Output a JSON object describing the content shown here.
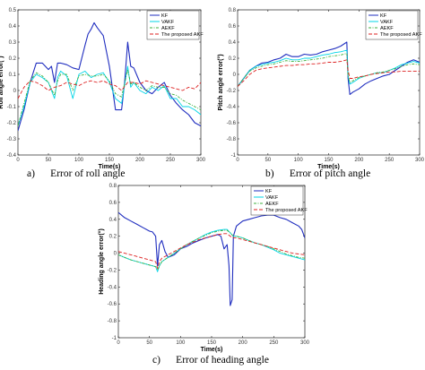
{
  "chart_data": [
    {
      "type": "line",
      "caption": "a)      Error of roll angle",
      "xlabel": "Time(s)",
      "ylabel": "Roll angle error(°)",
      "xlim": [
        0,
        300
      ],
      "ylim": [
        -0.4,
        0.5
      ],
      "xticks": [
        0,
        50,
        100,
        150,
        200,
        250,
        300
      ],
      "yticks": [
        -0.4,
        -0.3,
        -0.2,
        -0.1,
        0,
        0.1,
        0.2,
        0.3,
        0.4,
        0.5
      ],
      "legend_position": "top-right",
      "grid": false,
      "series": [
        {
          "name": "KF",
          "color": "#1f2dbf",
          "style": "solid",
          "x": [
            0,
            10,
            20,
            30,
            40,
            50,
            55,
            60,
            65,
            70,
            80,
            90,
            100,
            110,
            115,
            120,
            125,
            130,
            140,
            150,
            160,
            170,
            175,
            180,
            185,
            190,
            200,
            210,
            220,
            230,
            240,
            250,
            260,
            270,
            280,
            290,
            300
          ],
          "y": [
            -0.25,
            -0.12,
            0.05,
            0.17,
            0.17,
            0.13,
            0.15,
            0.05,
            0.17,
            0.17,
            0.16,
            0.14,
            0.13,
            0.28,
            0.35,
            0.38,
            0.42,
            0.39,
            0.34,
            0.15,
            -0.12,
            -0.12,
            0.05,
            0.3,
            0.15,
            0.14,
            0.05,
            0.0,
            -0.02,
            0.02,
            0.05,
            -0.03,
            -0.08,
            -0.12,
            -0.15,
            -0.2,
            -0.22
          ]
        },
        {
          "name": "VAKF",
          "color": "#00d4e6",
          "style": "solid",
          "x": [
            0,
            10,
            20,
            30,
            40,
            50,
            55,
            60,
            65,
            70,
            80,
            90,
            100,
            110,
            120,
            130,
            140,
            150,
            160,
            170,
            180,
            185,
            190,
            200,
            210,
            220,
            230,
            240,
            250,
            260,
            270,
            280,
            290,
            300
          ],
          "y": [
            -0.22,
            -0.1,
            0.05,
            0.1,
            0.08,
            0.05,
            0.0,
            -0.05,
            0.08,
            0.12,
            0.09,
            -0.05,
            0.1,
            0.12,
            0.08,
            0.1,
            0.11,
            0.05,
            -0.05,
            -0.08,
            0.15,
            0.02,
            0.05,
            0.0,
            -0.02,
            0.02,
            0.0,
            0.03,
            -0.05,
            -0.05,
            -0.1,
            -0.1,
            -0.12,
            -0.15
          ]
        },
        {
          "name": "AEKF",
          "color": "#3cb13c",
          "style": "dashdot",
          "x": [
            0,
            10,
            20,
            30,
            40,
            50,
            60,
            65,
            70,
            80,
            90,
            100,
            110,
            120,
            130,
            140,
            150,
            160,
            170,
            180,
            185,
            190,
            200,
            210,
            220,
            230,
            240,
            250,
            260,
            270,
            280,
            290,
            300
          ],
          "y": [
            -0.22,
            -0.08,
            0.06,
            0.11,
            0.09,
            0.05,
            -0.03,
            0.06,
            0.1,
            0.1,
            0.0,
            0.09,
            0.1,
            0.09,
            0.09,
            0.1,
            0.06,
            -0.02,
            -0.04,
            0.13,
            0.04,
            0.05,
            0.02,
            0.0,
            0.03,
            0.02,
            0.02,
            -0.02,
            -0.03,
            -0.06,
            -0.08,
            -0.1,
            -0.12
          ]
        },
        {
          "name": "The proposed AKF",
          "color": "#dd2020",
          "style": "dashed",
          "x": [
            0,
            10,
            20,
            30,
            40,
            50,
            60,
            70,
            80,
            90,
            100,
            110,
            120,
            130,
            140,
            150,
            160,
            170,
            180,
            190,
            200,
            210,
            220,
            230,
            240,
            250,
            260,
            270,
            280,
            290,
            300
          ],
          "y": [
            -0.05,
            0.02,
            0.06,
            0.05,
            0.03,
            0.0,
            0.02,
            0.03,
            0.05,
            0.04,
            0.03,
            0.05,
            0.06,
            0.05,
            0.06,
            0.04,
            0.03,
            0.0,
            0.05,
            0.05,
            0.04,
            0.06,
            0.05,
            0.04,
            0.03,
            0.02,
            0.01,
            0.0,
            0.02,
            0.01,
            0.05
          ]
        }
      ]
    },
    {
      "type": "line",
      "caption": "b)      Error of pitch angle",
      "xlabel": "Time(s)",
      "ylabel": "Pitch angle error(°)",
      "xlim": [
        0,
        300
      ],
      "ylim": [
        -1,
        0.8
      ],
      "xticks": [
        0,
        50,
        100,
        150,
        200,
        250,
        300
      ],
      "yticks": [
        -1,
        -0.8,
        -0.6,
        -0.4,
        -0.2,
        0,
        0.2,
        0.4,
        0.6,
        0.8
      ],
      "legend_position": "top-right",
      "grid": false,
      "series": [
        {
          "name": "KF",
          "color": "#1f2dbf",
          "style": "solid",
          "x": [
            0,
            10,
            20,
            30,
            40,
            50,
            60,
            70,
            80,
            90,
            100,
            110,
            120,
            130,
            140,
            150,
            160,
            170,
            180,
            182,
            185,
            190,
            200,
            210,
            220,
            230,
            240,
            250,
            260,
            270,
            280,
            290,
            300
          ],
          "y": [
            -0.15,
            -0.05,
            0.05,
            0.1,
            0.14,
            0.15,
            0.18,
            0.2,
            0.25,
            0.22,
            0.22,
            0.25,
            0.24,
            0.25,
            0.28,
            0.3,
            0.32,
            0.35,
            0.4,
            -0.05,
            -0.25,
            -0.22,
            -0.18,
            -0.12,
            -0.08,
            -0.05,
            -0.02,
            0.0,
            0.05,
            0.1,
            0.15,
            0.18,
            0.15
          ]
        },
        {
          "name": "VAKF",
          "color": "#00d4e6",
          "style": "solid",
          "x": [
            0,
            10,
            20,
            30,
            40,
            50,
            60,
            70,
            80,
            90,
            100,
            110,
            120,
            130,
            140,
            150,
            160,
            170,
            180,
            182,
            185,
            190,
            200,
            210,
            220,
            230,
            240,
            250,
            260,
            270,
            280,
            290,
            300
          ],
          "y": [
            -0.15,
            -0.05,
            0.05,
            0.1,
            0.12,
            0.14,
            0.15,
            0.17,
            0.2,
            0.18,
            0.18,
            0.2,
            0.2,
            0.22,
            0.24,
            0.25,
            0.27,
            0.28,
            0.3,
            -0.02,
            -0.12,
            -0.1,
            -0.05,
            -0.02,
            0.0,
            0.02,
            0.02,
            0.05,
            0.08,
            0.12,
            0.14,
            0.16,
            0.14
          ]
        },
        {
          "name": "AEKF",
          "color": "#3cb13c",
          "style": "dashdot",
          "x": [
            0,
            10,
            20,
            30,
            40,
            50,
            60,
            70,
            80,
            90,
            100,
            110,
            120,
            130,
            140,
            150,
            160,
            170,
            180,
            182,
            185,
            190,
            200,
            210,
            220,
            230,
            240,
            250,
            260,
            270,
            280,
            290,
            300
          ],
          "y": [
            -0.15,
            -0.05,
            0.04,
            0.08,
            0.1,
            0.12,
            0.13,
            0.15,
            0.17,
            0.16,
            0.16,
            0.17,
            0.18,
            0.19,
            0.2,
            0.22,
            0.23,
            0.24,
            0.26,
            -0.02,
            -0.1,
            -0.08,
            -0.04,
            -0.02,
            0.0,
            0.02,
            0.03,
            0.05,
            0.07,
            0.1,
            0.12,
            0.13,
            0.12
          ]
        },
        {
          "name": "The proposed AKF",
          "color": "#dd2020",
          "style": "dashed",
          "x": [
            0,
            10,
            20,
            30,
            40,
            50,
            60,
            70,
            80,
            90,
            100,
            110,
            120,
            130,
            140,
            150,
            160,
            170,
            180,
            182,
            185,
            190,
            200,
            210,
            220,
            230,
            240,
            250,
            260,
            270,
            280,
            290,
            300
          ],
          "y": [
            -0.15,
            -0.08,
            0.0,
            0.05,
            0.07,
            0.08,
            0.09,
            0.1,
            0.11,
            0.11,
            0.12,
            0.12,
            0.13,
            0.13,
            0.14,
            0.15,
            0.15,
            0.16,
            0.18,
            0.05,
            -0.05,
            -0.05,
            -0.03,
            -0.02,
            0.0,
            0.01,
            0.02,
            0.03,
            0.03,
            0.04,
            0.04,
            0.04,
            0.04
          ]
        }
      ]
    },
    {
      "type": "line",
      "caption": "c)      Error of heading angle",
      "xlabel": "Time(s)",
      "ylabel": "Heading angle error(°)",
      "xlim": [
        0,
        300
      ],
      "ylim": [
        -1,
        0.8
      ],
      "xticks": [
        0,
        50,
        100,
        150,
        200,
        250,
        300
      ],
      "yticks": [
        -1,
        -0.8,
        -0.6,
        -0.4,
        -0.2,
        0,
        0.2,
        0.4,
        0.6,
        0.8
      ],
      "legend_position": "top-right",
      "grid": false,
      "series": [
        {
          "name": "KF",
          "color": "#1f2dbf",
          "style": "solid",
          "x": [
            0,
            10,
            20,
            30,
            40,
            50,
            55,
            60,
            63,
            66,
            70,
            75,
            80,
            90,
            100,
            110,
            120,
            130,
            140,
            150,
            160,
            165,
            170,
            175,
            178,
            180,
            183,
            185,
            190,
            200,
            210,
            220,
            230,
            240,
            250,
            260,
            270,
            280,
            290,
            295,
            300
          ],
          "y": [
            0.48,
            0.42,
            0.38,
            0.34,
            0.3,
            0.26,
            0.25,
            0.2,
            -0.15,
            0.1,
            0.15,
            0.02,
            -0.05,
            -0.02,
            0.05,
            0.08,
            0.12,
            0.15,
            0.18,
            0.2,
            0.22,
            0.2,
            0.05,
            0.1,
            -0.15,
            -0.62,
            -0.55,
            0.2,
            0.32,
            0.38,
            0.4,
            0.42,
            0.44,
            0.45,
            0.45,
            0.42,
            0.4,
            0.36,
            0.32,
            0.28,
            0.18
          ]
        },
        {
          "name": "VAKF",
          "color": "#00d4e6",
          "style": "solid",
          "x": [
            0,
            10,
            20,
            30,
            40,
            50,
            60,
            63,
            66,
            70,
            80,
            90,
            100,
            110,
            120,
            130,
            140,
            150,
            160,
            170,
            175,
            180,
            185,
            190,
            200,
            210,
            220,
            230,
            240,
            250,
            260,
            270,
            280,
            290,
            300
          ],
          "y": [
            -0.02,
            -0.05,
            -0.08,
            -0.1,
            -0.12,
            -0.14,
            -0.16,
            -0.22,
            -0.15,
            -0.1,
            -0.05,
            0.0,
            0.05,
            0.1,
            0.14,
            0.18,
            0.22,
            0.25,
            0.27,
            0.28,
            0.28,
            0.24,
            0.2,
            0.2,
            0.18,
            0.15,
            0.12,
            0.1,
            0.07,
            0.04,
            0.0,
            -0.02,
            -0.04,
            -0.06,
            -0.08
          ]
        },
        {
          "name": "AEKF",
          "color": "#3cb13c",
          "style": "dashdot",
          "x": [
            0,
            10,
            20,
            30,
            40,
            50,
            60,
            63,
            66,
            70,
            80,
            90,
            100,
            110,
            120,
            130,
            140,
            150,
            160,
            170,
            175,
            180,
            185,
            190,
            200,
            210,
            220,
            230,
            240,
            250,
            260,
            270,
            280,
            290,
            300
          ],
          "y": [
            -0.02,
            -0.05,
            -0.08,
            -0.1,
            -0.12,
            -0.14,
            -0.16,
            -0.2,
            -0.15,
            -0.1,
            -0.05,
            0.0,
            0.05,
            0.1,
            0.14,
            0.18,
            0.21,
            0.24,
            0.26,
            0.27,
            0.27,
            0.24,
            0.2,
            0.2,
            0.18,
            0.15,
            0.12,
            0.1,
            0.08,
            0.05,
            0.02,
            -0.01,
            -0.03,
            -0.05,
            -0.06
          ]
        },
        {
          "name": "The proposed AKF",
          "color": "#dd2020",
          "style": "dashed",
          "x": [
            0,
            10,
            20,
            30,
            40,
            50,
            60,
            63,
            66,
            70,
            80,
            90,
            100,
            110,
            120,
            130,
            140,
            150,
            160,
            170,
            175,
            180,
            185,
            190,
            200,
            210,
            220,
            230,
            240,
            250,
            260,
            270,
            280,
            290,
            300
          ],
          "y": [
            0.02,
            0.0,
            -0.02,
            -0.04,
            -0.06,
            -0.08,
            -0.1,
            -0.18,
            -0.1,
            -0.06,
            -0.02,
            0.02,
            0.06,
            0.1,
            0.13,
            0.16,
            0.18,
            0.2,
            0.22,
            0.23,
            0.23,
            0.2,
            0.18,
            0.18,
            0.16,
            0.14,
            0.12,
            0.1,
            0.08,
            0.06,
            0.04,
            0.02,
            0.0,
            -0.01,
            -0.02
          ]
        }
      ]
    }
  ]
}
